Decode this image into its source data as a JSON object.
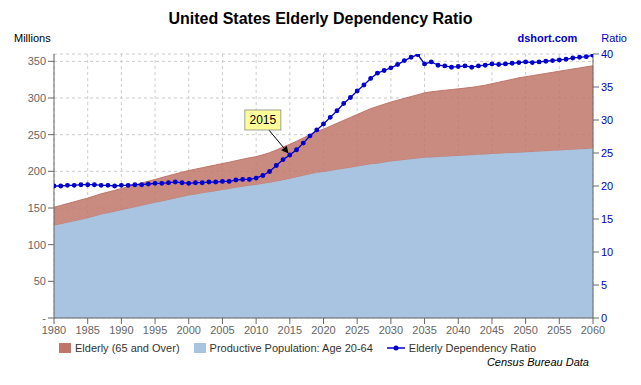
{
  "chart_data": {
    "type": "area",
    "title": "United States Elderly Dependency Ratio",
    "ylabel": "Millions",
    "y2label": "Ratio",
    "watermark": "dshort.com",
    "source": "Census Bureau Data",
    "annotations": [
      {
        "text": "2015",
        "x": 2015,
        "y": 24.7,
        "text_x": 2011,
        "text_y": 30.0,
        "axis": "y2"
      }
    ],
    "stacked": true,
    "grid": true,
    "legend": "lower left",
    "xlim": [
      1980,
      2060
    ],
    "xticks": [
      1980,
      1985,
      1990,
      1995,
      2000,
      2005,
      2010,
      2015,
      2020,
      2025,
      2030,
      2035,
      2040,
      2045,
      2050,
      2055,
      2060
    ],
    "ylim": [
      0,
      360
    ],
    "yticks": [
      {
        "value": 0,
        "label": "-"
      },
      50,
      100,
      150,
      200,
      250,
      300,
      350
    ],
    "y2lim": [
      0,
      40
    ],
    "y2ticks": [
      0,
      5,
      10,
      15,
      20,
      25,
      30,
      35,
      40
    ],
    "x": [
      1980,
      1981,
      1982,
      1983,
      1984,
      1985,
      1986,
      1987,
      1988,
      1989,
      1990,
      1991,
      1992,
      1993,
      1994,
      1995,
      1996,
      1997,
      1998,
      1999,
      2000,
      2001,
      2002,
      2003,
      2004,
      2005,
      2006,
      2007,
      2008,
      2009,
      2010,
      2011,
      2012,
      2013,
      2014,
      2015,
      2016,
      2017,
      2018,
      2019,
      2020,
      2021,
      2022,
      2023,
      2024,
      2025,
      2026,
      2027,
      2028,
      2029,
      2030,
      2031,
      2032,
      2033,
      2034,
      2035,
      2036,
      2037,
      2038,
      2039,
      2040,
      2041,
      2042,
      2043,
      2044,
      2045,
      2046,
      2047,
      2048,
      2049,
      2050,
      2051,
      2052,
      2053,
      2054,
      2055,
      2056,
      2057,
      2058,
      2059,
      2060
    ],
    "series": [
      {
        "name": "Elderly (65 and Over)",
        "type": "area",
        "color": "#c0756a",
        "values": [
          25.0,
          25.5,
          26.0,
          26.5,
          27.0,
          27.5,
          28.0,
          28.3,
          28.7,
          29.0,
          29.5,
          30.0,
          30.5,
          31.0,
          31.5,
          32.0,
          32.5,
          33.0,
          33.5,
          33.8,
          34.0,
          34.5,
          34.9,
          35.3,
          35.7,
          36.1,
          36.5,
          37.0,
          37.5,
          37.9,
          38.5,
          39.5,
          41.0,
          43.0,
          45.0,
          47.0,
          49.0,
          51.5,
          54.0,
          56.5,
          58.5,
          61.0,
          63.5,
          66.0,
          68.5,
          71.0,
          73.5,
          76.0,
          78.0,
          79.5,
          81.0,
          82.5,
          84.0,
          85.5,
          87.0,
          88.5,
          89.5,
          90.0,
          90.5,
          91.0,
          91.5,
          92.0,
          92.5,
          93.5,
          94.5,
          96.0,
          97.5,
          99.0,
          100.5,
          102.0,
          103.0,
          104.0,
          105.0,
          106.0,
          107.0,
          108.0,
          109.0,
          110.0,
          111.0,
          112.0,
          113.0
        ]
      },
      {
        "name": "Productive Population: Age 20-64",
        "type": "area",
        "color": "#a8c4e0",
        "values": [
          126.0,
          128.0,
          130.0,
          132.0,
          134.0,
          136.0,
          138.5,
          141.0,
          143.0,
          145.0,
          147.0,
          149.0,
          151.0,
          153.0,
          155.0,
          157.0,
          159.0,
          161.0,
          163.0,
          165.0,
          167.0,
          168.5,
          170.0,
          171.5,
          173.0,
          174.5,
          176.0,
          177.5,
          179.0,
          180.5,
          181.5,
          183.0,
          184.5,
          186.0,
          188.0,
          190.0,
          192.0,
          194.0,
          196.0,
          198.0,
          199.0,
          200.5,
          202.0,
          203.5,
          205.0,
          206.5,
          208.0,
          209.5,
          210.5,
          212.0,
          213.5,
          214.5,
          215.5,
          216.5,
          217.5,
          218.5,
          219.0,
          219.5,
          220.0,
          220.5,
          221.0,
          221.5,
          222.0,
          222.5,
          223.0,
          223.5,
          224.0,
          224.5,
          225.0,
          225.5,
          226.0,
          226.5,
          227.0,
          227.5,
          228.0,
          228.5,
          229.0,
          229.5,
          230.0,
          230.5,
          231.0
        ]
      },
      {
        "name": "Elderly Dependency Ratio",
        "type": "line",
        "axis": "y2",
        "color": "#0000cc",
        "marker": "circle",
        "values": [
          20.0,
          20.0,
          20.1,
          20.1,
          20.2,
          20.2,
          20.2,
          20.1,
          20.1,
          20.0,
          20.1,
          20.1,
          20.2,
          20.2,
          20.3,
          20.4,
          20.4,
          20.5,
          20.6,
          20.5,
          20.4,
          20.5,
          20.5,
          20.6,
          20.6,
          20.7,
          20.7,
          20.9,
          21.0,
          21.0,
          21.2,
          21.6,
          22.2,
          23.1,
          24.0,
          24.7,
          25.5,
          26.5,
          27.6,
          28.5,
          29.4,
          30.4,
          31.4,
          32.5,
          33.4,
          34.4,
          35.3,
          36.3,
          37.1,
          37.5,
          37.9,
          38.4,
          39.0,
          39.5,
          39.9,
          38.5,
          38.8,
          38.3,
          38.2,
          38.0,
          38.1,
          38.2,
          38.0,
          38.2,
          38.3,
          38.5,
          38.4,
          38.5,
          38.6,
          38.7,
          38.8,
          38.7,
          38.8,
          38.9,
          39.0,
          39.1,
          39.2,
          39.4,
          39.5,
          39.6,
          39.8
        ]
      }
    ]
  }
}
